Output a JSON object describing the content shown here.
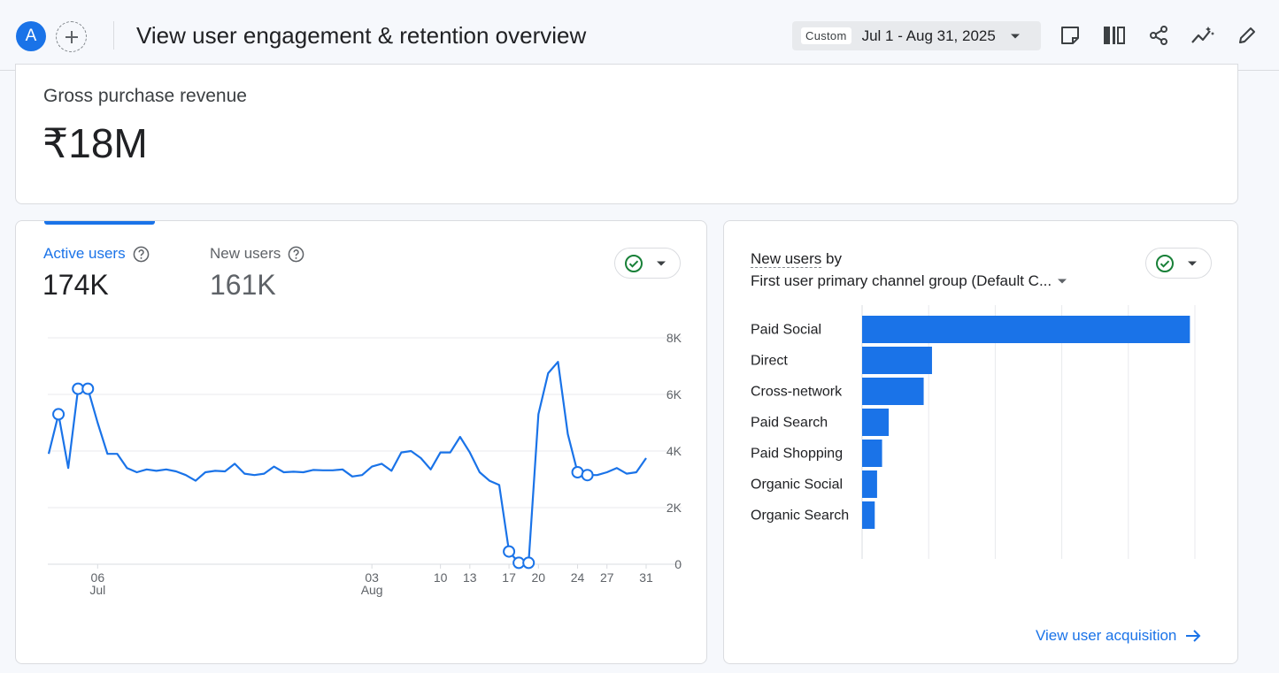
{
  "header": {
    "avatar_letter": "A",
    "title": "View user engagement & retention overview",
    "date_range": {
      "badge": "Custom",
      "label": "Jul 1 - Aug 31, 2025"
    },
    "tools": [
      "note-icon",
      "compare-icon",
      "share-icon",
      "insights-icon",
      "edit-icon"
    ]
  },
  "revenue": {
    "label": "Gross purchase revenue",
    "value": "₹18M"
  },
  "users_card": {
    "tabs": [
      {
        "label": "Active users",
        "value": "174K",
        "active": true
      },
      {
        "label": "New users",
        "value": "161K",
        "active": false
      }
    ],
    "colors": {
      "accent": "#1a73e8",
      "status_green": "#188038"
    },
    "chart_data": {
      "type": "line",
      "series": [
        {
          "values": [
            3900,
            5300,
            3400,
            6200,
            6200,
            5000,
            3900,
            3900,
            3400,
            3250,
            3350,
            3300,
            3350,
            3280,
            3150,
            2950,
            3250,
            3300,
            3280,
            3550,
            3200,
            3150,
            3200,
            3450,
            3250,
            3270,
            3250,
            3330,
            3320,
            3320,
            3350,
            3100,
            3150,
            3450,
            3550,
            3300,
            3950,
            4000,
            3750,
            3350,
            3950,
            3950,
            4500,
            3950,
            3250,
            2950,
            2800,
            450,
            50,
            50,
            5300,
            6750,
            7150,
            4600,
            3250,
            3150,
            3150,
            3250,
            3400,
            3200,
            3250,
            3750
          ],
          "highlighted_points": [
            1,
            3,
            4,
            47,
            48,
            49,
            54,
            55
          ]
        }
      ],
      "x_start": "2025-07-01",
      "x_end": "2025-08-31",
      "x_ticks": [
        {
          "day": "06",
          "month": "Jul"
        },
        {
          "day": "13",
          "month": ""
        },
        {
          "day": "20",
          "month": ""
        },
        {
          "day": "27",
          "month": ""
        },
        {
          "day": "03",
          "month": "Aug"
        },
        {
          "day": "10",
          "month": ""
        },
        {
          "day": "17",
          "month": ""
        },
        {
          "day": "24",
          "month": ""
        },
        {
          "day": "31",
          "month": ""
        }
      ],
      "y_ticks": [
        "0",
        "2K",
        "4K",
        "6K",
        "8K"
      ],
      "ylim": [
        0,
        8000
      ],
      "grid": true
    }
  },
  "acquisition_card": {
    "title_metric": "New users",
    "title_by": "by",
    "dimension": "First user primary channel group (Default C...",
    "link": "View user acquisition",
    "chart_data": {
      "type": "bar",
      "orientation": "horizontal",
      "categories": [
        "Paid Social",
        "Direct",
        "Cross-network",
        "Paid Search",
        "Paid Shopping",
        "Organic Social",
        "Organic Search"
      ],
      "values": [
        98500,
        21000,
        18500,
        8000,
        6000,
        4500,
        3800
      ],
      "x_ticks": [
        "0",
        "20K",
        "40K",
        "60K",
        "80K",
        "100K"
      ],
      "xlim": [
        0,
        100000
      ],
      "grid": true
    }
  }
}
